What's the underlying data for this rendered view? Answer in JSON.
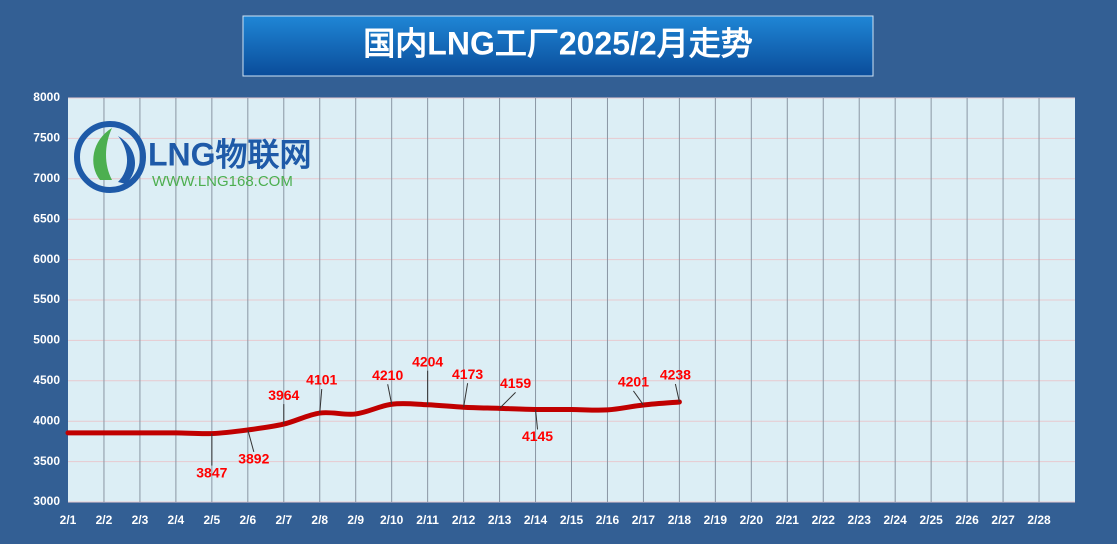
{
  "chart_data": {
    "type": "line",
    "title": "国内LNG工厂2025/2月走势",
    "logo": {
      "name": "LNG物联网",
      "url": "WWW.LNG168.COM"
    },
    "categories": [
      "2/1",
      "2/2",
      "2/3",
      "2/4",
      "2/5",
      "2/6",
      "2/7",
      "2/8",
      "2/9",
      "2/10",
      "2/11",
      "2/12",
      "2/13",
      "2/14",
      "2/15",
      "2/16",
      "2/17",
      "2/18",
      "2/19",
      "2/20",
      "2/21",
      "2/22",
      "2/23",
      "2/24",
      "2/25",
      "2/26",
      "2/27",
      "2/28"
    ],
    "series": [
      {
        "name": "国内LNG工厂",
        "color": "#c00000",
        "values": [
          3855,
          3855,
          3855,
          3855,
          3847,
          3892,
          3964,
          4101,
          4090,
          4210,
          4204,
          4173,
          4159,
          4145,
          4145,
          4140,
          4201,
          4238,
          null,
          null,
          null,
          null,
          null,
          null,
          null,
          null,
          null,
          null
        ],
        "value_labels": [
          null,
          null,
          null,
          null,
          "3847",
          "3892",
          "3964",
          "4101",
          null,
          "4210",
          "4204",
          "4173",
          "4159",
          "4145",
          null,
          null,
          "4201",
          "4238",
          null,
          null,
          null,
          null,
          null,
          null,
          null,
          null,
          null,
          null
        ]
      }
    ],
    "ylim": [
      3000,
      8000
    ],
    "yticks": [
      3000,
      3500,
      4000,
      4500,
      5000,
      5500,
      6000,
      6500,
      7000,
      7500,
      8000
    ],
    "grid": true
  }
}
